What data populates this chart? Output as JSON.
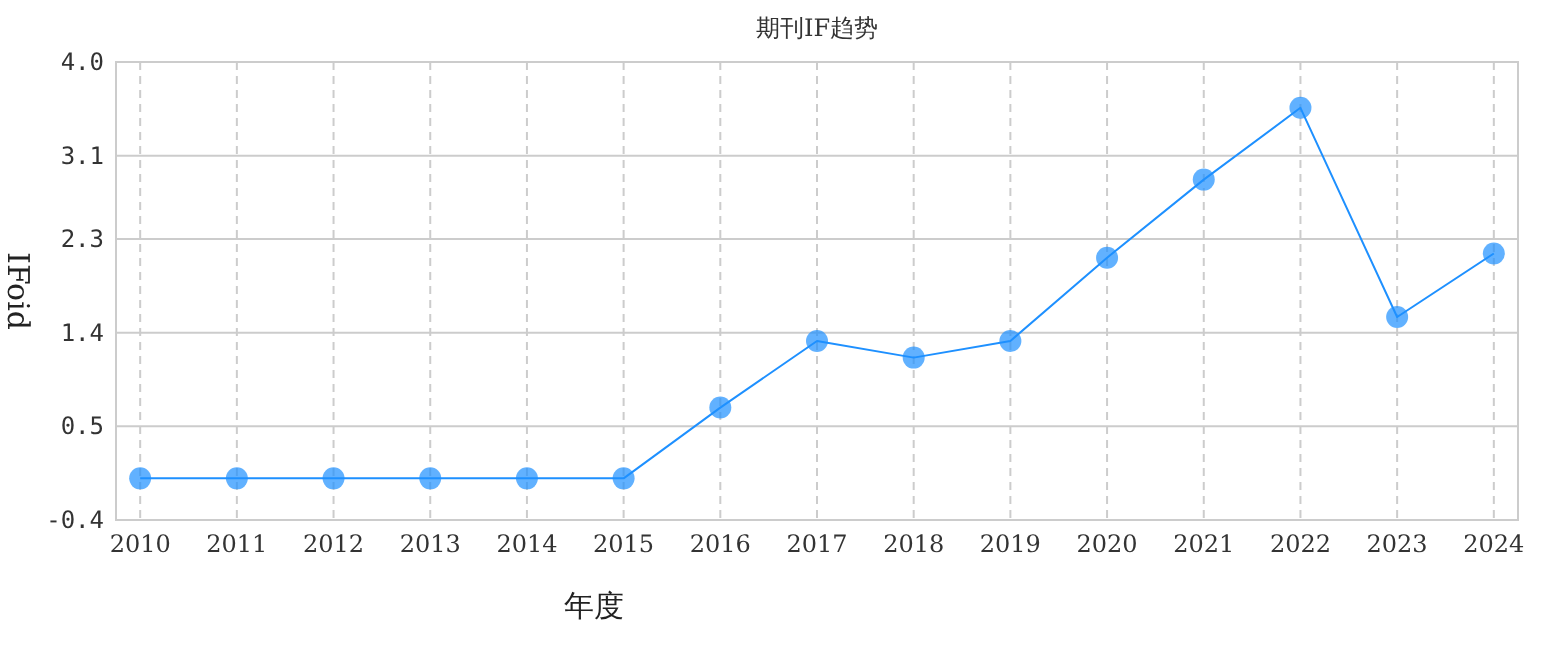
{
  "chart_data": {
    "type": "line",
    "title": "期刊IF趋势",
    "xlabel": "年度",
    "ylabel": "IFoid",
    "categories": [
      "2010",
      "2011",
      "2012",
      "2013",
      "2014",
      "2015",
      "2016",
      "2017",
      "2018",
      "2019",
      "2020",
      "2021",
      "2022",
      "2023",
      "2024"
    ],
    "series": [
      {
        "color": "#1e90ff",
        "values": [
          0,
          0,
          0,
          0,
          0,
          0,
          0.68,
          1.32,
          1.16,
          1.32,
          2.12,
          2.87,
          3.56,
          1.55,
          2.16
        ]
      }
    ],
    "ylim": [
      -0.4,
      4.0
    ],
    "yticks": [
      {
        "value": -0.4,
        "label": "-0.4"
      },
      0.5,
      1.4,
      2.3,
      3.1,
      {
        "value": 4.0,
        "label": "4.0"
      }
    ],
    "grid": true,
    "marker": "circle",
    "line_style": "solid"
  }
}
